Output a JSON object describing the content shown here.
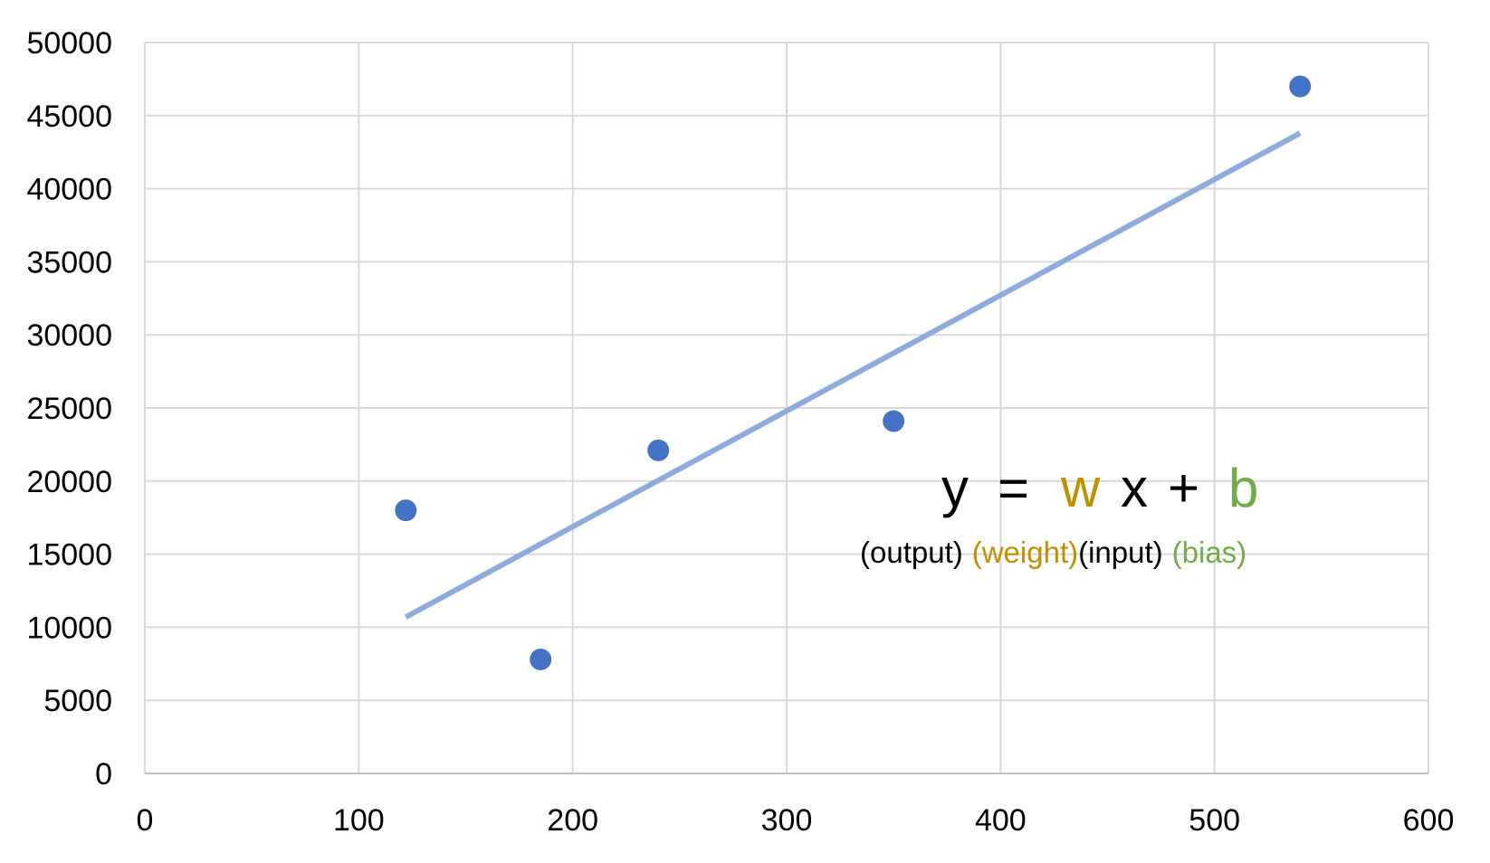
{
  "chart_data": {
    "type": "scatter",
    "title": "",
    "xlabel": "",
    "ylabel": "",
    "xlim": [
      0,
      600
    ],
    "ylim": [
      0,
      50000
    ],
    "x_ticks": [
      "0",
      "100",
      "200",
      "300",
      "400",
      "500",
      "600"
    ],
    "y_ticks": [
      "0",
      "5000",
      "10000",
      "15000",
      "20000",
      "25000",
      "30000",
      "35000",
      "40000",
      "45000",
      "50000"
    ],
    "grid": true,
    "series": [
      {
        "points": [
          {
            "x": 122,
            "y": 18000
          },
          {
            "x": 185,
            "y": 7800
          },
          {
            "x": 240,
            "y": 22100
          },
          {
            "x": 350,
            "y": 24100
          },
          {
            "x": 540,
            "y": 47000
          }
        ],
        "color": "#4472C4"
      }
    ],
    "trendline": {
      "type": "linear",
      "color": "#8FAADC",
      "x_range": [
        122,
        540
      ],
      "y_range": [
        10700,
        43800
      ]
    },
    "equation": {
      "y": "y",
      "equals": "=",
      "w": "w",
      "x": "x",
      "plus": "+",
      "b": "b",
      "output_label": "(output)",
      "weight_label": "(weight)",
      "input_label": "(input)",
      "bias_label": "(bias)",
      "text_color": "#000000",
      "weight_color": "#BF9000",
      "bias_color": "#70AD47"
    }
  }
}
